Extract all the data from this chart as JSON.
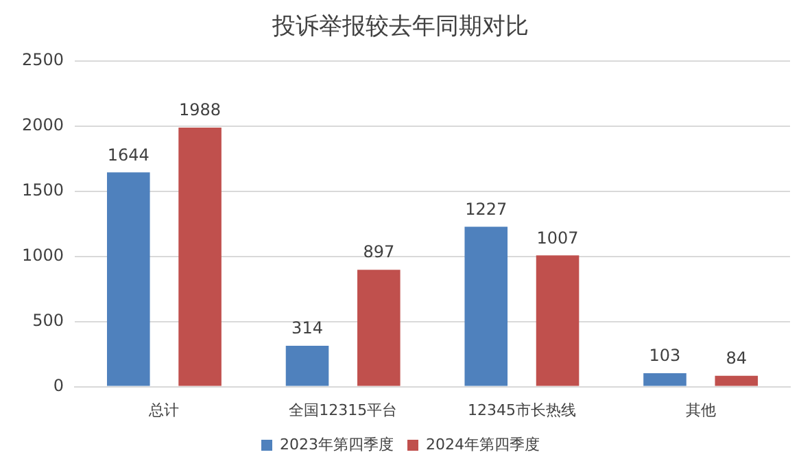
{
  "chart_data": {
    "type": "bar",
    "title": "投诉举报较去年同期对比",
    "categories": [
      "总计",
      "全国12315平台",
      "12345市长热线",
      "其他"
    ],
    "series": [
      {
        "name": "2023年第四季度",
        "color": "#4f81bd",
        "values": [
          1644,
          314,
          1227,
          103
        ]
      },
      {
        "name": "2024年第四季度",
        "color": "#c0504d",
        "values": [
          1988,
          897,
          1007,
          84
        ]
      }
    ],
    "ylim": [
      0,
      2500
    ],
    "yticks": [
      0,
      500,
      1000,
      1500,
      2000,
      2500
    ],
    "grid": "y",
    "legend": "bottom",
    "data_labels": true
  }
}
